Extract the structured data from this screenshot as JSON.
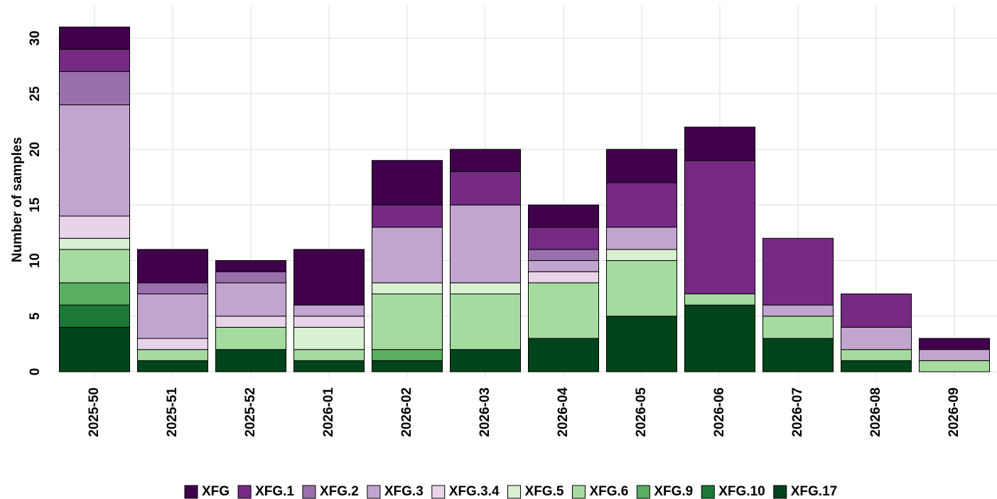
{
  "chart_data": {
    "type": "stacked_bar",
    "y_label": "Number of samples",
    "categories": [
      "2025-50",
      "2025-51",
      "2025-52",
      "2026-01",
      "2026-02",
      "2026-03",
      "2026-04",
      "2026-05",
      "2026-06",
      "2026-07",
      "2026-08",
      "2026-09"
    ],
    "series": [
      {
        "name": "XFG.17",
        "color": "#00441b",
        "values": [
          4,
          1,
          2,
          1,
          1,
          2,
          3,
          5,
          6,
          3,
          1,
          0
        ]
      },
      {
        "name": "XFG.10",
        "color": "#1b7837",
        "values": [
          2,
          0,
          0,
          0,
          0,
          0,
          0,
          0,
          0,
          0,
          0,
          0
        ]
      },
      {
        "name": "XFG.9",
        "color": "#5aae61",
        "values": [
          2,
          0,
          0,
          0,
          1,
          0,
          0,
          0,
          0,
          0,
          0,
          0
        ]
      },
      {
        "name": "XFG.6",
        "color": "#a6dba0",
        "values": [
          3,
          1,
          2,
          1,
          5,
          5,
          5,
          5,
          1,
          2,
          1,
          1
        ]
      },
      {
        "name": "XFG.5",
        "color": "#d9f0d3",
        "values": [
          1,
          0,
          0,
          2,
          1,
          1,
          0,
          1,
          0,
          0,
          0,
          0
        ]
      },
      {
        "name": "XFG.3.4",
        "color": "#e7d4e8",
        "values": [
          2,
          1,
          1,
          1,
          0,
          0,
          1,
          0,
          0,
          0,
          0,
          0
        ]
      },
      {
        "name": "XFG.3",
        "color": "#c2a5cf",
        "values": [
          10,
          4,
          3,
          1,
          5,
          7,
          1,
          2,
          0,
          1,
          2,
          1
        ]
      },
      {
        "name": "XFG.2",
        "color": "#9970ab",
        "values": [
          3,
          1,
          1,
          0,
          0,
          0,
          1,
          0,
          0,
          0,
          0,
          0
        ]
      },
      {
        "name": "XFG.1",
        "color": "#762a83",
        "values": [
          2,
          0,
          0,
          0,
          2,
          3,
          2,
          4,
          12,
          6,
          3,
          0
        ]
      },
      {
        "name": "XFG",
        "color": "#40004b",
        "values": [
          2,
          3,
          1,
          5,
          4,
          2,
          2,
          3,
          3,
          0,
          0,
          1
        ]
      }
    ],
    "ylim": [
      0,
      31
    ],
    "yticks": [
      0,
      5,
      10,
      15,
      20,
      25,
      30
    ],
    "grid": true
  }
}
